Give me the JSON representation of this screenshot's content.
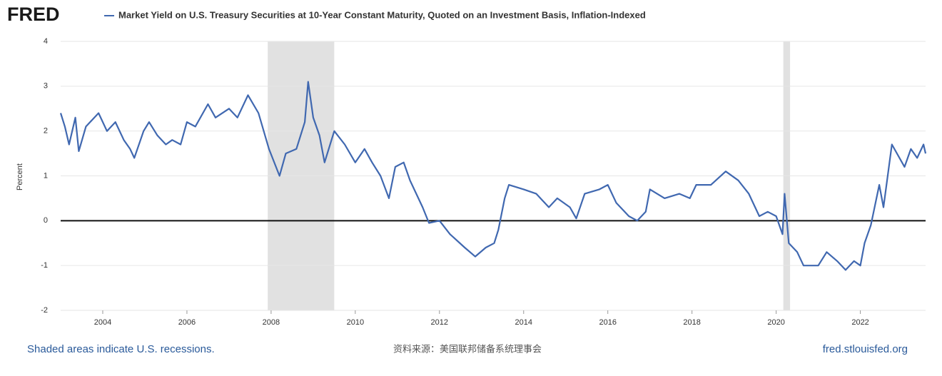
{
  "logo": "FRED",
  "chart_data": {
    "type": "line",
    "ylabel": "Percent",
    "x": [
      2003.0,
      2003.1,
      2003.2,
      2003.35,
      2003.43,
      2003.6,
      2003.9,
      2004.1,
      2004.3,
      2004.5,
      2004.65,
      2004.75,
      2004.97,
      2005.1,
      2005.3,
      2005.5,
      2005.65,
      2005.85,
      2006.0,
      2006.2,
      2006.5,
      2006.68,
      2007.0,
      2007.2,
      2007.45,
      2007.7,
      2007.95,
      2008.2,
      2008.35,
      2008.6,
      2008.8,
      2008.88,
      2009.0,
      2009.15,
      2009.27,
      2009.5,
      2009.75,
      2010.0,
      2010.22,
      2010.4,
      2010.6,
      2010.8,
      2010.95,
      2011.15,
      2011.3,
      2011.6,
      2011.75,
      2012.0,
      2012.25,
      2012.6,
      2012.85,
      2013.1,
      2013.3,
      2013.4,
      2013.55,
      2013.65,
      2014.0,
      2014.3,
      2014.6,
      2014.8,
      2015.1,
      2015.25,
      2015.45,
      2015.8,
      2016.0,
      2016.2,
      2016.5,
      2016.7,
      2016.9,
      2017.0,
      2017.35,
      2017.7,
      2017.95,
      2018.1,
      2018.45,
      2018.8,
      2019.1,
      2019.35,
      2019.6,
      2019.8,
      2020.0,
      2020.15,
      2020.2,
      2020.3,
      2020.5,
      2020.65,
      2021.0,
      2021.2,
      2021.45,
      2021.65,
      2021.85,
      2022.0,
      2022.1,
      2022.25,
      2022.45,
      2022.55,
      2022.75,
      2023.05,
      2023.2,
      2023.35,
      2023.5,
      2023.55
    ],
    "series": [
      {
        "name": "Market Yield on U.S. Treasury Securities at 10-Year Constant Maturity, Quoted on an Investment Basis, Inflation-Indexed",
        "color": "#4068b0",
        "values": [
          2.4,
          2.1,
          1.7,
          2.3,
          1.55,
          2.1,
          2.4,
          2.0,
          2.2,
          1.8,
          1.6,
          1.4,
          2.0,
          2.2,
          1.9,
          1.7,
          1.8,
          1.7,
          2.2,
          2.1,
          2.6,
          2.3,
          2.5,
          2.3,
          2.8,
          2.4,
          1.6,
          1.0,
          1.5,
          1.6,
          2.2,
          3.1,
          2.3,
          1.9,
          1.3,
          2.0,
          1.7,
          1.3,
          1.6,
          1.3,
          1.0,
          0.5,
          1.2,
          1.3,
          0.9,
          0.3,
          -0.05,
          0.0,
          -0.3,
          -0.6,
          -0.8,
          -0.6,
          -0.5,
          -0.2,
          0.5,
          0.8,
          0.7,
          0.6,
          0.3,
          0.5,
          0.3,
          0.05,
          0.6,
          0.7,
          0.8,
          0.4,
          0.1,
          0.0,
          0.2,
          0.7,
          0.5,
          0.6,
          0.5,
          0.8,
          0.8,
          1.1,
          0.9,
          0.6,
          0.1,
          0.2,
          0.1,
          -0.3,
          0.6,
          -0.5,
          -0.7,
          -1.0,
          -1.0,
          -0.7,
          -0.9,
          -1.1,
          -0.9,
          -1.0,
          -0.5,
          -0.1,
          0.8,
          0.3,
          1.7,
          1.2,
          1.6,
          1.4,
          1.7,
          1.5
        ]
      }
    ],
    "recessions": [
      [
        2007.92,
        2009.5
      ],
      [
        2020.17,
        2020.33
      ]
    ],
    "reference_line": 0,
    "xlim": [
      2003.0,
      2023.55
    ],
    "xticks": [
      2004,
      2006,
      2008,
      2010,
      2012,
      2014,
      2016,
      2018,
      2020,
      2022
    ],
    "ylim": [
      -2,
      4
    ],
    "yticks": [
      -2,
      -1,
      0,
      1,
      2,
      3,
      4
    ],
    "grid": true
  },
  "footer": {
    "note": "Shaded areas indicate U.S. recessions.",
    "source": "资料来源：美国联邦储备系统理事会",
    "site": "fred.stlouisfed.org"
  }
}
